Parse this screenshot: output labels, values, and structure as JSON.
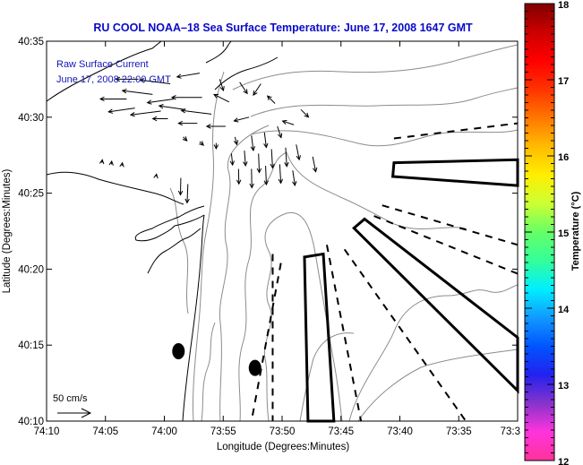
{
  "chart_data": {
    "type": "map",
    "title": "RU COOL  NOAA–18  Sea Surface Temperature:  June 17, 2008 1647 GMT",
    "xlabel": "Longitude (Degrees:Minutes)",
    "ylabel": "Latitude (Degrees:Minutes)",
    "xlim_minutes_west": [
      610,
      570
    ],
    "ylim_minutes_north": [
      2410,
      2435
    ],
    "x_ticks": [
      {
        "label": "74:10",
        "value": 610
      },
      {
        "label": "74:05",
        "value": 605
      },
      {
        "label": "74:00",
        "value": 600
      },
      {
        "label": "73:55",
        "value": 595
      },
      {
        "label": "73:50",
        "value": 590
      },
      {
        "label": "73:45",
        "value": 585
      },
      {
        "label": "73:40",
        "value": 580
      },
      {
        "label": "73:35",
        "value": 575
      },
      {
        "label": "73:3",
        "value": 570
      }
    ],
    "y_ticks": [
      {
        "label": "40:35",
        "value": 2435
      },
      {
        "label": "40:30",
        "value": 2430
      },
      {
        "label": "40:25",
        "value": 2425
      },
      {
        "label": "40:20",
        "value": 2420
      },
      {
        "label": "40:15",
        "value": 2415
      },
      {
        "label": "40:10",
        "value": 2410
      }
    ],
    "annotations": {
      "line1": "Raw Surface Current",
      "line2": "June 17, 2008 22:00 GMT",
      "scale_label": "50 cm/s"
    },
    "colorbar": {
      "title": "Temperature (°C)",
      "min": 12,
      "max": 18,
      "ticks": [
        "18",
        "17",
        "16",
        "15",
        "14",
        "13",
        "12"
      ],
      "tick_values": [
        18,
        17,
        16,
        15,
        14,
        13,
        12
      ],
      "colors": [
        "#ff3399",
        "#ff33dd",
        "#8833cc",
        "#2222ee",
        "#0055ff",
        "#1199ff",
        "#00eeff",
        "#33ff99",
        "#66ff66",
        "#ccff33",
        "#ffee00",
        "#ffbb00",
        "#ff7700",
        "#ff3300",
        "#ff0000",
        "#cc0000",
        "#800000"
      ]
    },
    "buoys": [
      {
        "name": "buoy-1",
        "lon_min": 598.8,
        "lat_min": 2414.6
      },
      {
        "name": "buoy-2",
        "lon_min": 592.3,
        "lat_min": 2413.5
      }
    ],
    "boxes": [
      {
        "name": "box-east",
        "points": [
          [
            580.5,
            2427.0
          ],
          [
            570,
            2427.2
          ],
          [
            570,
            2425.5
          ],
          [
            580.6,
            2426.1
          ]
        ]
      },
      {
        "name": "box-southeast",
        "points": [
          [
            583.0,
            2423.3
          ],
          [
            570,
            2415.5
          ],
          [
            570,
            2412.0
          ],
          [
            583.9,
            2422.7
          ]
        ]
      },
      {
        "name": "box-south",
        "points": [
          [
            588.1,
            2420.8
          ],
          [
            586.5,
            2421.0
          ],
          [
            585.6,
            2410.0
          ],
          [
            587.8,
            2410.0
          ]
        ]
      }
    ],
    "dashed_lines": [
      {
        "name": "dash-1",
        "points": [
          [
            580.5,
            2428.6
          ],
          [
            570,
            2429.6
          ]
        ]
      },
      {
        "name": "dash-2",
        "points": [
          [
            581.5,
            2424.2
          ],
          [
            570,
            2421.6
          ]
        ]
      },
      {
        "name": "dash-3",
        "points": [
          [
            582.2,
            2423.5
          ],
          [
            570,
            2419.7
          ]
        ]
      },
      {
        "name": "dash-4",
        "points": [
          [
            584.7,
            2421.3
          ],
          [
            574.4,
            2410.0
          ]
        ]
      },
      {
        "name": "dash-5",
        "points": [
          [
            586.2,
            2421.6
          ],
          [
            583.3,
            2410.0
          ]
        ]
      },
      {
        "name": "dash-6",
        "points": [
          [
            590.8,
            2421.0
          ],
          [
            590.8,
            2410.0
          ]
        ]
      },
      {
        "name": "dash-7",
        "points": [
          [
            590.1,
            2420.4
          ],
          [
            592.6,
            2410.0
          ]
        ]
      }
    ],
    "currents": [
      {
        "lon": 597.0,
        "lat": 2432.9,
        "u": -6,
        "v": -1
      },
      {
        "lon": 599.5,
        "lat": 2432.2,
        "u": -8,
        "v": 1
      },
      {
        "lon": 602.2,
        "lat": 2432.5,
        "u": -6,
        "v": 0
      },
      {
        "lon": 601.0,
        "lat": 2431.5,
        "u": -8,
        "v": 1
      },
      {
        "lon": 603.2,
        "lat": 2431.2,
        "u": -7,
        "v": 0
      },
      {
        "lon": 599.2,
        "lat": 2431.2,
        "u": -7,
        "v": -1
      },
      {
        "lon": 596.8,
        "lat": 2431.3,
        "u": -8,
        "v": 0
      },
      {
        "lon": 602.5,
        "lat": 2430.6,
        "u": -7,
        "v": -1
      },
      {
        "lon": 600.3,
        "lat": 2430.4,
        "u": -8,
        "v": -1
      },
      {
        "lon": 598.2,
        "lat": 2430.5,
        "u": -7,
        "v": 1
      },
      {
        "lon": 596.0,
        "lat": 2430.2,
        "u": -8,
        "v": 1
      },
      {
        "lon": 594.5,
        "lat": 2431.0,
        "u": -4,
        "v": 2
      },
      {
        "lon": 593.6,
        "lat": 2432.3,
        "u": 2,
        "v": -3
      },
      {
        "lon": 595.3,
        "lat": 2432.5,
        "u": 1,
        "v": -3
      },
      {
        "lon": 591.8,
        "lat": 2432.2,
        "u": -2,
        "v": -3
      },
      {
        "lon": 590.6,
        "lat": 2430.9,
        "u": -2,
        "v": 2
      },
      {
        "lon": 592.8,
        "lat": 2430.0,
        "u": -4,
        "v": -1
      },
      {
        "lon": 594.8,
        "lat": 2429.4,
        "u": -5,
        "v": 0
      },
      {
        "lon": 597.2,
        "lat": 2429.6,
        "u": -5,
        "v": 0
      },
      {
        "lon": 599.7,
        "lat": 2429.9,
        "u": -4,
        "v": 0
      },
      {
        "lon": 588.4,
        "lat": 2430.5,
        "u": 2,
        "v": -2
      },
      {
        "lon": 589.0,
        "lat": 2429.5,
        "u": -3,
        "v": 1
      },
      {
        "lon": 598.4,
        "lat": 2428.7,
        "u": 1,
        "v": -1
      },
      {
        "lon": 597.0,
        "lat": 2428.4,
        "u": 1,
        "v": -1
      },
      {
        "lon": 595.6,
        "lat": 2428.3,
        "u": 0,
        "v": -1.5
      },
      {
        "lon": 594.0,
        "lat": 2428.7,
        "u": 0.5,
        "v": -2
      },
      {
        "lon": 592.6,
        "lat": 2428.8,
        "u": 0.5,
        "v": -4
      },
      {
        "lon": 591.5,
        "lat": 2429.0,
        "u": 0.5,
        "v": -4
      },
      {
        "lon": 590.4,
        "lat": 2429.4,
        "u": 1,
        "v": -3
      },
      {
        "lon": 594.3,
        "lat": 2427.6,
        "u": 0.3,
        "v": -3
      },
      {
        "lon": 593.2,
        "lat": 2427.8,
        "u": 0.3,
        "v": -4
      },
      {
        "lon": 592.0,
        "lat": 2427.6,
        "u": 0.2,
        "v": -5
      },
      {
        "lon": 590.9,
        "lat": 2427.9,
        "u": 0.3,
        "v": -5
      },
      {
        "lon": 589.7,
        "lat": 2428.0,
        "u": 0.3,
        "v": -5
      },
      {
        "lon": 588.8,
        "lat": 2428.2,
        "u": 0.8,
        "v": -4
      },
      {
        "lon": 593.7,
        "lat": 2426.6,
        "u": 0.1,
        "v": -4
      },
      {
        "lon": 592.6,
        "lat": 2426.6,
        "u": 0.1,
        "v": -5
      },
      {
        "lon": 591.4,
        "lat": 2426.8,
        "u": 0.2,
        "v": -5
      },
      {
        "lon": 590.2,
        "lat": 2426.9,
        "u": 0.3,
        "v": -5
      },
      {
        "lon": 589.1,
        "lat": 2426.5,
        "u": 0.6,
        "v": -4
      },
      {
        "lon": 587.4,
        "lat": 2427.4,
        "u": 0.8,
        "v": -4
      },
      {
        "lon": 598.6,
        "lat": 2426.0,
        "u": -0.1,
        "v": -4.5
      },
      {
        "lon": 598.0,
        "lat": 2425.6,
        "u": -0.2,
        "v": -5
      },
      {
        "lon": 605.3,
        "lat": 2427.0,
        "u": 0.1,
        "v": 0.8
      },
      {
        "lon": 604.5,
        "lat": 2426.9,
        "u": 0.1,
        "v": 0.8
      },
      {
        "lon": 603.6,
        "lat": 2426.8,
        "u": 0.1,
        "v": 0.8
      },
      {
        "lon": 600.7,
        "lat": 2426.1,
        "u": 0.1,
        "v": 0.6
      }
    ]
  }
}
